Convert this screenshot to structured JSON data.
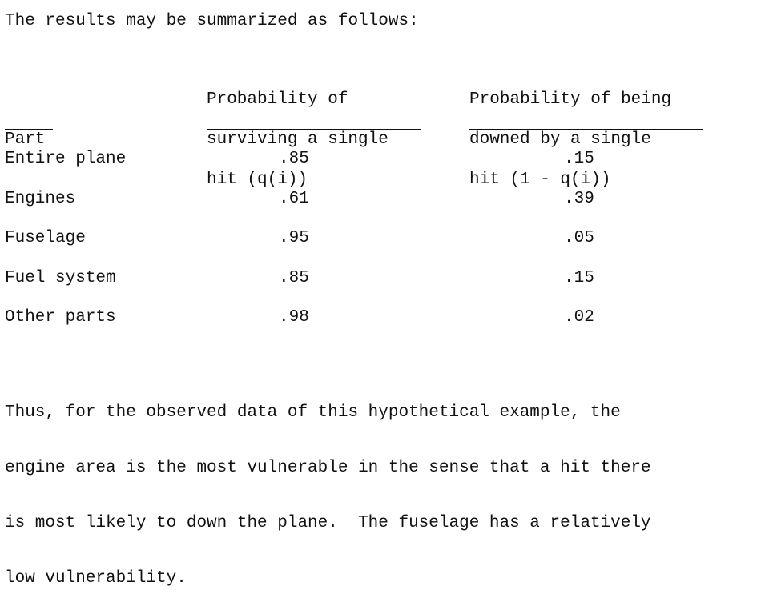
{
  "intro": "The results may be summarized as follows:",
  "table": {
    "headers": {
      "part": "Part",
      "survive_lines": [
        "Probability of",
        "surviving a single",
        "hit (q(i))"
      ],
      "downed_lines": [
        "Probability of being",
        "downed by a single",
        "hit (1 - q(i))"
      ]
    },
    "rows": [
      {
        "part": "Entire plane",
        "survive": ".85",
        "downed": ".15"
      },
      {
        "part": "Engines",
        "survive": ".61",
        "downed": ".39"
      },
      {
        "part": "Fuselage",
        "survive": ".95",
        "downed": ".05"
      },
      {
        "part": "Fuel system",
        "survive": ".85",
        "downed": ".15"
      },
      {
        "part": "Other parts",
        "survive": ".98",
        "downed": ".02"
      }
    ]
  },
  "closing_lines": [
    "Thus, for the observed data of this hypothetical example, the",
    "engine area is the most vulnerable in the sense that a hit there",
    "is most likely to down the plane.  The fuselage has a relatively",
    "low vulnerability."
  ]
}
